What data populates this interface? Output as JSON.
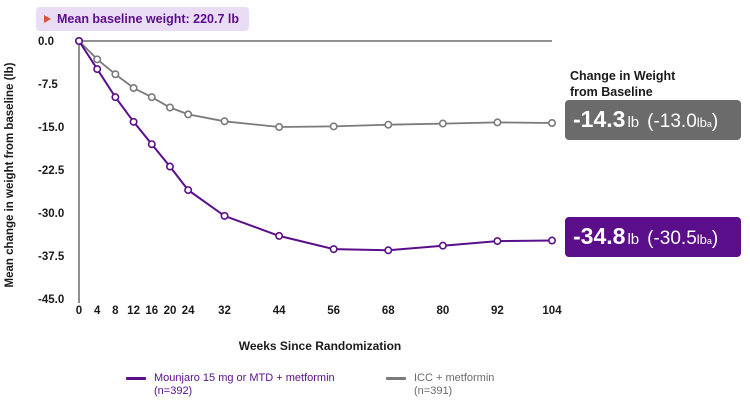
{
  "badge": {
    "text": "Mean baseline weight: 220.7 lb"
  },
  "change_title": [
    "Change in Weight",
    "from Baseline"
  ],
  "callouts": {
    "icc": {
      "value": "-14.3",
      "unit": "lb",
      "alt_value": "(-13.0",
      "alt_unit": "lb",
      "alt_sup": "a",
      "alt_close": ")",
      "color": "#6b6b6b"
    },
    "mounjaro": {
      "value": "-34.8",
      "unit": "lb",
      "alt_value": "(-30.5",
      "alt_unit": "lb",
      "alt_sup": "a",
      "alt_close": ")",
      "color": "#5b0e8a"
    }
  },
  "legend": {
    "mounjaro": {
      "line1": "Mounjaro 15 mg or MTD + metformin",
      "line2": "(n=392)"
    },
    "icc": {
      "line1": "ICC + metformin",
      "line2": "(n=391)"
    }
  },
  "chart_data": {
    "type": "line",
    "xlabel": "Weeks Since Randomization",
    "ylabel": "Mean change in weight from baseline (lb)",
    "x_ticks": [
      0,
      4,
      8,
      12,
      16,
      20,
      24,
      32,
      44,
      56,
      68,
      80,
      92,
      104
    ],
    "y_ticks": [
      "0.0",
      "-7.5",
      "-15.0",
      "-22.5",
      "-30.0",
      "-37.5",
      "-45.0"
    ],
    "ylim": [
      -45,
      0
    ],
    "grid": false,
    "series": [
      {
        "name": "Mounjaro 15 mg or MTD + metformin",
        "color": "#5b0e8a",
        "x": [
          0,
          4,
          8,
          12,
          16,
          20,
          24,
          32,
          44,
          56,
          68,
          80,
          92,
          104
        ],
        "values": [
          0,
          -4.9,
          -9.8,
          -14.1,
          -18.0,
          -21.9,
          -26.0,
          -30.5,
          -34.0,
          -36.3,
          -36.5,
          -35.7,
          -34.9,
          -34.8
        ]
      },
      {
        "name": "ICC + metformin",
        "color": "#7a7a7a",
        "x": [
          0,
          4,
          8,
          12,
          16,
          20,
          24,
          32,
          44,
          56,
          68,
          80,
          92,
          104
        ],
        "values": [
          0,
          -3.2,
          -5.8,
          -8.2,
          -9.8,
          -11.6,
          -12.8,
          -14.0,
          -15.0,
          -14.9,
          -14.6,
          -14.4,
          -14.2,
          -14.3
        ]
      }
    ]
  }
}
